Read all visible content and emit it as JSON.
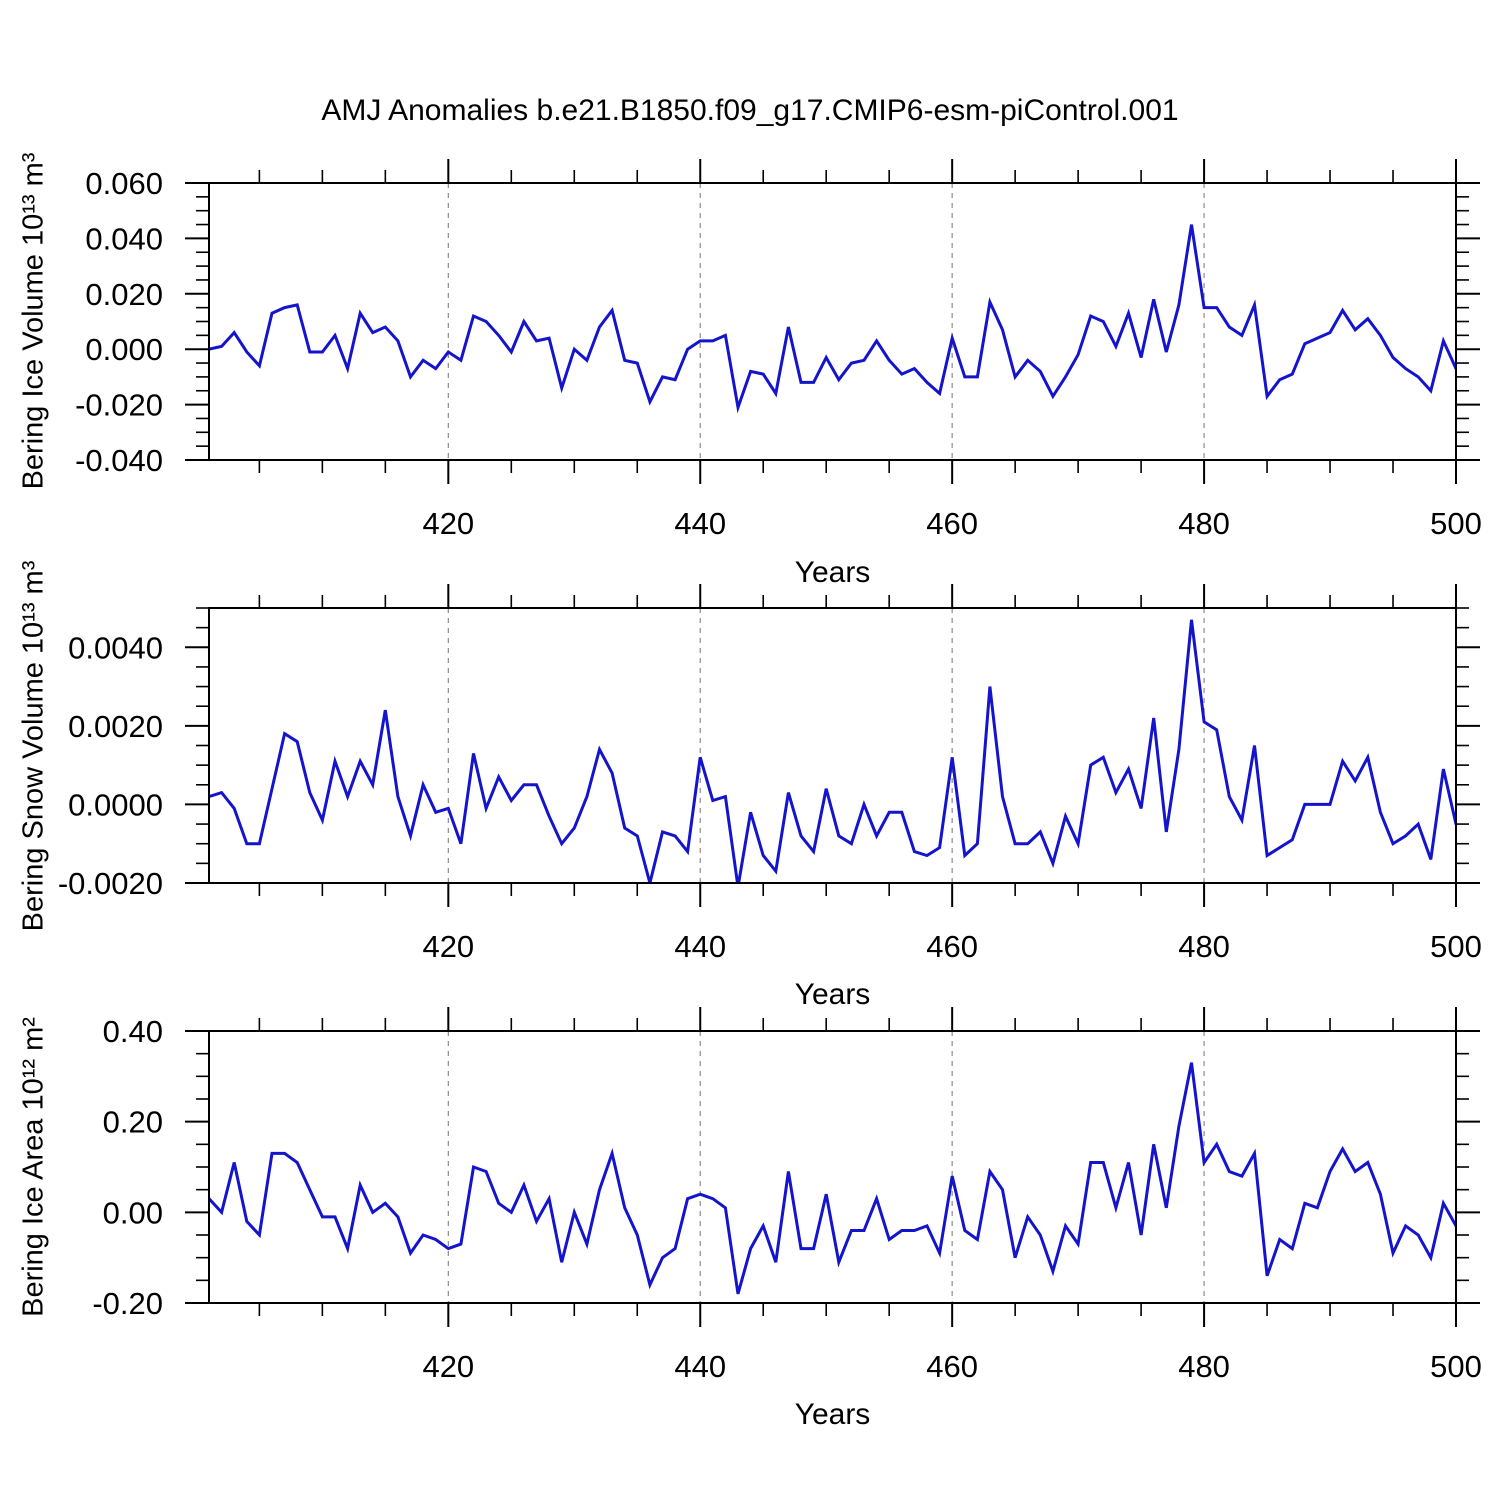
{
  "chart_data": {
    "type": "line",
    "title": "AMJ Anomalies b.e21.B1850.f09_g17.CMIP6-esm-piControl.001",
    "line_color": "#1414cd",
    "grid_color": "#8a8a8a",
    "x_axis": {
      "label": "Years",
      "start": 401,
      "end": 500,
      "major_ticks": [
        {
          "v": 420,
          "label": "420"
        },
        {
          "v": 440,
          "label": "440"
        },
        {
          "v": 460,
          "label": "460"
        },
        {
          "v": 480,
          "label": "480"
        },
        {
          "v": 500,
          "label": "500"
        }
      ],
      "minor_step": 5,
      "grid_years": [
        420,
        440,
        460,
        480
      ]
    },
    "panels": [
      {
        "name": "bering-ice-volume",
        "ylabel": "Bering Ice Volume 10¹³ m³",
        "ylim": [
          -0.04,
          0.06
        ],
        "y_major_ticks": [
          {
            "v": 0.06,
            "label": "0.060"
          },
          {
            "v": 0.04,
            "label": "0.040"
          },
          {
            "v": 0.02,
            "label": "0.020"
          },
          {
            "v": 0.0,
            "label": "0.000"
          },
          {
            "v": -0.02,
            "label": "-0.020"
          },
          {
            "v": -0.04,
            "label": "-0.040"
          }
        ],
        "y_minor_step": 0.005,
        "values": [
          0.0,
          0.001,
          0.006,
          -0.001,
          -0.006,
          0.013,
          0.015,
          0.016,
          -0.001,
          -0.001,
          0.005,
          -0.007,
          0.013,
          0.006,
          0.008,
          0.003,
          -0.01,
          -0.004,
          -0.007,
          -0.001,
          -0.004,
          0.012,
          0.01,
          0.005,
          -0.001,
          0.01,
          0.003,
          0.004,
          -0.014,
          0.0,
          -0.004,
          0.008,
          0.014,
          -0.004,
          -0.005,
          -0.019,
          -0.01,
          -0.011,
          0.0,
          0.003,
          0.003,
          0.005,
          -0.021,
          -0.008,
          -0.009,
          -0.016,
          0.008,
          -0.012,
          -0.012,
          -0.003,
          -0.011,
          -0.005,
          -0.004,
          0.003,
          -0.004,
          -0.009,
          -0.007,
          -0.012,
          -0.016,
          0.004,
          -0.01,
          -0.01,
          0.017,
          0.007,
          -0.01,
          -0.004,
          -0.008,
          -0.017,
          -0.01,
          -0.002,
          0.012,
          0.01,
          0.001,
          0.013,
          -0.003,
          0.018,
          -0.001,
          0.016,
          0.045,
          0.015,
          0.015,
          0.008,
          0.005,
          0.016,
          -0.017,
          -0.011,
          -0.009,
          0.002,
          0.004,
          0.006,
          0.014,
          0.007,
          0.011,
          0.005,
          -0.003,
          -0.007,
          -0.01,
          -0.015,
          0.003,
          -0.007
        ]
      },
      {
        "name": "bering-snow-volume",
        "ylabel": "Bering Snow Volume 10¹³ m³",
        "ylim": [
          -0.002,
          0.005
        ],
        "y_major_ticks": [
          {
            "v": 0.004,
            "label": "0.0040"
          },
          {
            "v": 0.002,
            "label": "0.0020"
          },
          {
            "v": 0.0,
            "label": "0.0000"
          },
          {
            "v": -0.002,
            "label": "-0.0020"
          }
        ],
        "y_minor_step": 0.0005,
        "values": [
          0.0002,
          0.0003,
          -0.0001,
          -0.001,
          -0.001,
          0.0004,
          0.0018,
          0.0016,
          0.0003,
          -0.0004,
          0.0011,
          0.0002,
          0.0011,
          0.0005,
          0.0024,
          0.0002,
          -0.0008,
          0.0005,
          -0.0002,
          -0.0001,
          -0.001,
          0.0013,
          -0.0001,
          0.0007,
          0.0001,
          0.0005,
          0.0005,
          -0.0003,
          -0.001,
          -0.0006,
          0.0002,
          0.0014,
          0.0008,
          -0.0006,
          -0.0008,
          -0.002,
          -0.0007,
          -0.0008,
          -0.0012,
          0.0012,
          0.0001,
          0.0002,
          -0.0021,
          -0.0002,
          -0.0013,
          -0.0017,
          0.0003,
          -0.0008,
          -0.0012,
          0.0004,
          -0.0008,
          -0.001,
          0.0,
          -0.0008,
          -0.0002,
          -0.0002,
          -0.0012,
          -0.0013,
          -0.0011,
          0.0012,
          -0.0013,
          -0.001,
          0.003,
          0.0002,
          -0.001,
          -0.001,
          -0.0007,
          -0.0015,
          -0.0003,
          -0.001,
          0.001,
          0.0012,
          0.0003,
          0.0009,
          -0.0001,
          0.0022,
          -0.0007,
          0.0014,
          0.0047,
          0.0021,
          0.0019,
          0.0002,
          -0.0004,
          0.0015,
          -0.0013,
          -0.0011,
          -0.0009,
          0.0,
          0.0,
          0.0,
          0.0011,
          0.0006,
          0.0012,
          -0.0002,
          -0.001,
          -0.0008,
          -0.0005,
          -0.0014,
          0.0009,
          -0.0005
        ]
      },
      {
        "name": "bering-ice-area",
        "ylabel": "Bering Ice Area 10¹² m²",
        "ylim": [
          -0.2,
          0.4
        ],
        "y_major_ticks": [
          {
            "v": 0.4,
            "label": "0.40"
          },
          {
            "v": 0.2,
            "label": "0.20"
          },
          {
            "v": 0.0,
            "label": "0.00"
          },
          {
            "v": -0.2,
            "label": "-0.20"
          }
        ],
        "y_minor_step": 0.05,
        "values": [
          0.03,
          0.0,
          0.11,
          -0.02,
          -0.05,
          0.13,
          0.13,
          0.11,
          0.05,
          -0.01,
          -0.01,
          -0.08,
          0.06,
          0.0,
          0.02,
          -0.01,
          -0.09,
          -0.05,
          -0.06,
          -0.08,
          -0.07,
          0.1,
          0.09,
          0.02,
          0.0,
          0.06,
          -0.02,
          0.03,
          -0.11,
          0.0,
          -0.07,
          0.05,
          0.13,
          0.01,
          -0.05,
          -0.16,
          -0.1,
          -0.08,
          0.03,
          0.04,
          0.03,
          0.01,
          -0.18,
          -0.08,
          -0.03,
          -0.11,
          0.09,
          -0.08,
          -0.08,
          0.04,
          -0.11,
          -0.04,
          -0.04,
          0.03,
          -0.06,
          -0.04,
          -0.04,
          -0.03,
          -0.09,
          0.08,
          -0.04,
          -0.06,
          0.09,
          0.05,
          -0.1,
          -0.01,
          -0.05,
          -0.13,
          -0.03,
          -0.07,
          0.11,
          0.11,
          0.01,
          0.11,
          -0.05,
          0.15,
          0.01,
          0.19,
          0.33,
          0.11,
          0.15,
          0.09,
          0.08,
          0.13,
          -0.14,
          -0.06,
          -0.08,
          0.02,
          0.01,
          0.09,
          0.14,
          0.09,
          0.11,
          0.04,
          -0.09,
          -0.03,
          -0.05,
          -0.1,
          0.02,
          -0.03
        ]
      }
    ]
  }
}
